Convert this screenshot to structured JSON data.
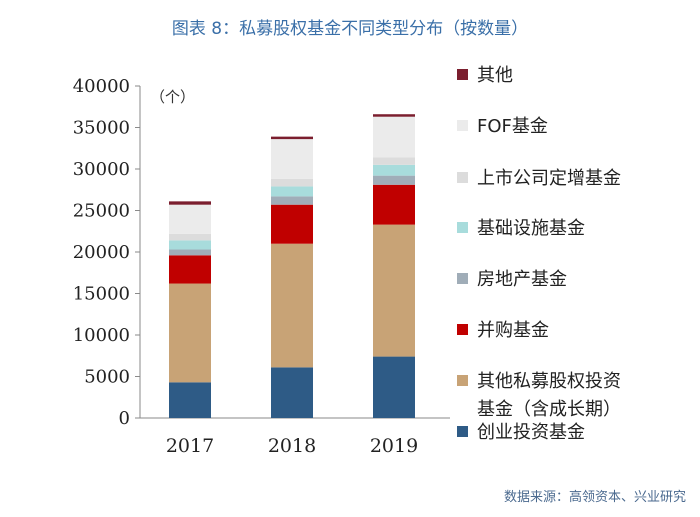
{
  "title": "图表 8：私募股权基金不同类型分布（按数量）",
  "source": "数据来源：高领资本、兴业研究",
  "chart_data": {
    "type": "bar",
    "stacked": true,
    "unit_label": "（个）",
    "ylim": [
      0,
      40000
    ],
    "yticks": [
      0,
      5000,
      10000,
      15000,
      20000,
      25000,
      30000,
      35000,
      40000
    ],
    "categories": [
      "2017",
      "2018",
      "2019"
    ],
    "series": [
      {
        "name": "创业投资基金",
        "color": "#2e5b86",
        "values": [
          4300,
          6100,
          7400
        ]
      },
      {
        "name": "其他私募股权投资基金（含成长期）",
        "color": "#c8a376",
        "values": [
          11900,
          14900,
          15900
        ]
      },
      {
        "name": "并购基金",
        "color": "#c00000",
        "values": [
          3400,
          4700,
          4800
        ]
      },
      {
        "name": "房地产基金",
        "color": "#a0adb8",
        "values": [
          700,
          1000,
          1100
        ]
      },
      {
        "name": "基础设施基金",
        "color": "#a8dcdc",
        "values": [
          1100,
          1200,
          1300
        ]
      },
      {
        "name": "上市公司定增基金",
        "color": "#dcdcdc",
        "values": [
          800,
          900,
          900
        ]
      },
      {
        "name": "FOF基金",
        "color": "#ebebeb",
        "values": [
          3500,
          4800,
          4900
        ]
      },
      {
        "name": "其他",
        "color": "#7b1e2e",
        "values": [
          400,
          300,
          300
        ]
      }
    ],
    "legend_order": [
      {
        "label": "其他",
        "color": "#7b1e2e"
      },
      {
        "label": "FOF基金",
        "color": "#ebebeb"
      },
      {
        "label": "上市公司定增基金",
        "color": "#dcdcdc"
      },
      {
        "label": "基础设施基金",
        "color": "#a8dcdc"
      },
      {
        "label": "房地产基金",
        "color": "#a0adb8"
      },
      {
        "label": "并购基金",
        "color": "#c00000"
      },
      {
        "label": "其他私募股权投资",
        "label2": "基金（含成长期）",
        "color": "#c8a376"
      },
      {
        "label": "创业投资基金",
        "color": "#2e5b86"
      }
    ]
  }
}
